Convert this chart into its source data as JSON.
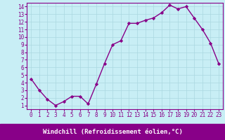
{
  "x": [
    0,
    1,
    2,
    3,
    4,
    5,
    6,
    7,
    8,
    9,
    10,
    11,
    12,
    13,
    14,
    15,
    16,
    17,
    18,
    19,
    20,
    21,
    22,
    23
  ],
  "y": [
    4.5,
    3.0,
    1.8,
    1.0,
    1.5,
    2.2,
    2.2,
    1.2,
    3.8,
    6.5,
    9.0,
    9.5,
    11.8,
    11.8,
    12.2,
    12.5,
    13.2,
    14.2,
    13.7,
    14.0,
    12.5,
    11.0,
    9.2,
    6.5
  ],
  "line_color": "#880088",
  "marker": "D",
  "marker_size": 2.2,
  "line_width": 1.0,
  "bg_color": "#c8eef5",
  "grid_color": "#aad8e0",
  "xlabel": "Windchill (Refroidissement éolien,°C)",
  "xlabel_bg": "#880088",
  "xlabel_color": "#ffffff",
  "tick_color": "#880088",
  "axis_color": "#880088",
  "xlim": [
    -0.5,
    23.5
  ],
  "ylim": [
    0.5,
    14.5
  ],
  "yticks": [
    1,
    2,
    3,
    4,
    5,
    6,
    7,
    8,
    9,
    10,
    11,
    12,
    13,
    14
  ],
  "xtick_labels": [
    "0",
    "1",
    "2",
    "3",
    "4",
    "5",
    "6",
    "7",
    "8",
    "9",
    "10",
    "11",
    "12",
    "13",
    "14",
    "15",
    "16",
    "17",
    "18",
    "19",
    "20",
    "21",
    "22",
    "23"
  ],
  "xlabel_fontsize": 6.5,
  "tick_fontsize": 5.5
}
